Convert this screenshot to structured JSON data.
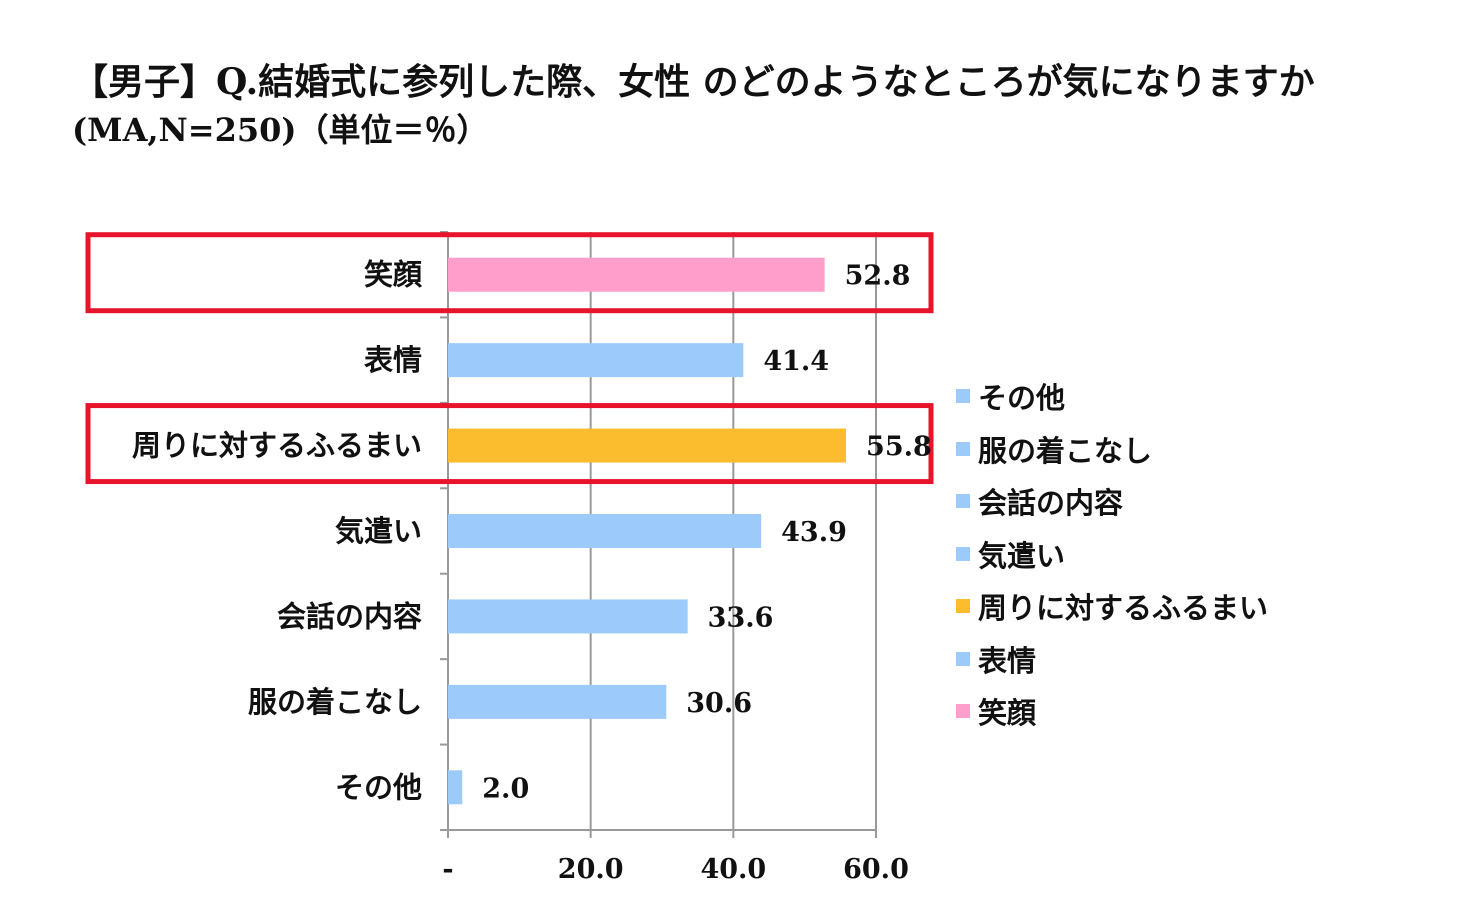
{
  "header": {
    "title": "【男子】Q.結婚式に参列した際、女性 のどのようなところが気になりますか",
    "subtitle": "(MA,N=250)（単位＝％）"
  },
  "colors": {
    "default_bar": "#9dcbf9",
    "pink_bar": "#ff9ecb",
    "gold_bar": "#fbbd2e",
    "highlight_box": "#e8142b",
    "axis": "#999999"
  },
  "chart_data": {
    "type": "bar",
    "orientation": "horizontal",
    "categories": [
      "笑顔",
      "表情",
      "周りに対するふるまい",
      "気遣い",
      "会話の内容",
      "服の着こなし",
      "その他"
    ],
    "values": [
      52.8,
      41.4,
      55.8,
      43.9,
      33.6,
      30.6,
      2.0
    ],
    "value_labels": [
      "52.8",
      "41.4",
      "55.8",
      "43.9",
      "33.6",
      "30.6",
      "2.0"
    ],
    "bar_colors": [
      "#ff9ecb",
      "#9dcbf9",
      "#fbbd2e",
      "#9dcbf9",
      "#9dcbf9",
      "#9dcbf9",
      "#9dcbf9"
    ],
    "highlighted": [
      "笑顔",
      "周りに対するふるまい"
    ],
    "xlim": [
      0,
      60
    ],
    "xticks": [
      0,
      20,
      40,
      60
    ],
    "xtick_labels": [
      "-",
      "20.0",
      "40.0",
      "60.0"
    ],
    "grid": true,
    "legend": {
      "position": "right",
      "entries": [
        {
          "label": "その他",
          "color": "#9dcbf9"
        },
        {
          "label": "服の着こなし",
          "color": "#9dcbf9"
        },
        {
          "label": "会話の内容",
          "color": "#9dcbf9"
        },
        {
          "label": "気遣い",
          "color": "#9dcbf9"
        },
        {
          "label": "周りに対するふるまい",
          "color": "#fbbd2e"
        },
        {
          "label": "表情",
          "color": "#9dcbf9"
        },
        {
          "label": "笑顔",
          "color": "#ff9ecb"
        }
      ]
    }
  }
}
